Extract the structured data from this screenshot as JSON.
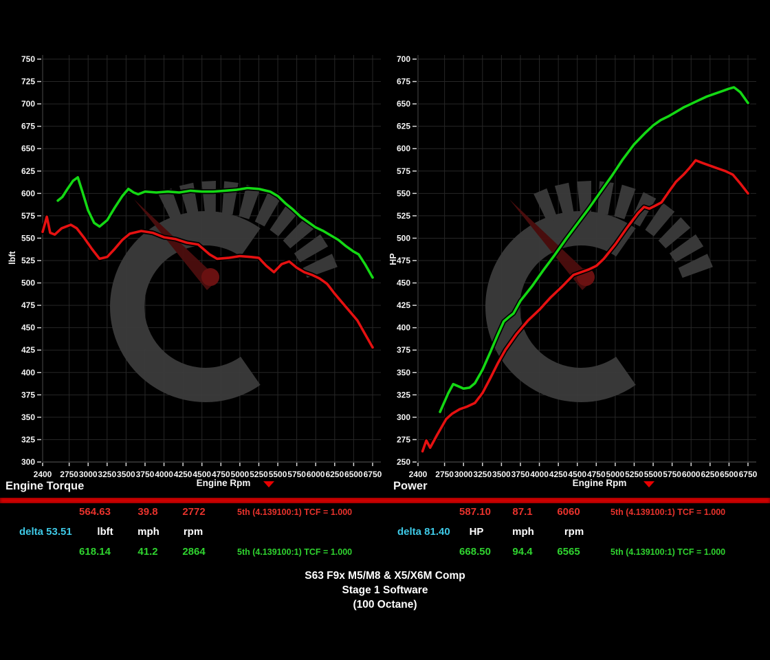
{
  "colors": {
    "background": "#000000",
    "separator": "#d40000",
    "red_text": "#e8322c",
    "green_text": "#2fd32f",
    "cyan_text": "#3ec9e6",
    "white_text": "#ffffff",
    "curve_red": "#e51111",
    "curve_green": "#14d814",
    "grid": "#272727",
    "axis": "#4a4a4a",
    "tick": "#d8d8d8",
    "watermark": "#3b3b3b",
    "needle": "#4c0e0e",
    "needle_dot": "#6f1212",
    "dropdown_red": "#e80000"
  },
  "chart_data": [
    {
      "type": "line",
      "title": "Engine Torque",
      "xlabel": "Engine Rpm",
      "ylabel": "lbft",
      "xlim": [
        2400,
        6860
      ],
      "ylim": [
        300,
        750
      ],
      "y_tick_step": 25,
      "x_ticks": [
        2400,
        2750,
        3000,
        3250,
        3500,
        3750,
        4000,
        4250,
        4500,
        4750,
        5000,
        5250,
        5500,
        5750,
        6000,
        6250,
        6500,
        6750
      ],
      "grid": true,
      "legend": "none",
      "series": [
        {
          "name": "baseline-red",
          "color": "#e51111",
          "points": [
            [
              2400,
              557
            ],
            [
              2430,
              566
            ],
            [
              2455,
              574
            ],
            [
              2500,
              556
            ],
            [
              2560,
              554
            ],
            [
              2650,
              561
            ],
            [
              2772,
              565
            ],
            [
              2850,
              561
            ],
            [
              2950,
              550
            ],
            [
              3050,
              538
            ],
            [
              3150,
              527
            ],
            [
              3250,
              529
            ],
            [
              3350,
              538
            ],
            [
              3450,
              548
            ],
            [
              3550,
              555
            ],
            [
              3700,
              558
            ],
            [
              3850,
              556
            ],
            [
              4000,
              551
            ],
            [
              4150,
              549
            ],
            [
              4300,
              545
            ],
            [
              4450,
              543
            ],
            [
              4600,
              532
            ],
            [
              4700,
              527
            ],
            [
              4850,
              528
            ],
            [
              5000,
              530
            ],
            [
              5150,
              529
            ],
            [
              5250,
              528
            ],
            [
              5350,
              519
            ],
            [
              5450,
              512
            ],
            [
              5550,
              521
            ],
            [
              5650,
              524
            ],
            [
              5750,
              517
            ],
            [
              5850,
              512
            ],
            [
              5950,
              509
            ],
            [
              6050,
              505
            ],
            [
              6150,
              499
            ],
            [
              6250,
              488
            ],
            [
              6350,
              478
            ],
            [
              6450,
              468
            ],
            [
              6550,
              458
            ],
            [
              6650,
              443
            ],
            [
              6750,
              428
            ]
          ]
        },
        {
          "name": "stage1-green",
          "color": "#14d814",
          "points": [
            [
              2600,
              592
            ],
            [
              2660,
              596
            ],
            [
              2720,
              604
            ],
            [
              2800,
              614
            ],
            [
              2864,
              618
            ],
            [
              2920,
              603
            ],
            [
              3000,
              581
            ],
            [
              3080,
              567
            ],
            [
              3150,
              563
            ],
            [
              3250,
              570
            ],
            [
              3350,
              584
            ],
            [
              3450,
              597
            ],
            [
              3530,
              605
            ],
            [
              3600,
              601
            ],
            [
              3660,
              599
            ],
            [
              3750,
              602
            ],
            [
              3900,
              601
            ],
            [
              4050,
              602
            ],
            [
              4200,
              601
            ],
            [
              4350,
              603
            ],
            [
              4500,
              602
            ],
            [
              4650,
              602
            ],
            [
              4800,
              603
            ],
            [
              4950,
              604
            ],
            [
              5100,
              606
            ],
            [
              5250,
              605
            ],
            [
              5400,
              602
            ],
            [
              5500,
              597
            ],
            [
              5600,
              589
            ],
            [
              5700,
              582
            ],
            [
              5800,
              574
            ],
            [
              5900,
              568
            ],
            [
              6000,
              562
            ],
            [
              6100,
              558
            ],
            [
              6200,
              553
            ],
            [
              6300,
              548
            ],
            [
              6400,
              541
            ],
            [
              6500,
              535
            ],
            [
              6565,
              532
            ],
            [
              6650,
              521
            ],
            [
              6750,
              506
            ]
          ]
        }
      ]
    },
    {
      "type": "line",
      "title": "Power",
      "xlabel": "Engine Rpm",
      "ylabel": "HP",
      "xlim": [
        2400,
        6860
      ],
      "ylim": [
        250,
        700
      ],
      "y_tick_step": 25,
      "x_ticks": [
        2400,
        2750,
        3000,
        3250,
        3500,
        3750,
        4000,
        4250,
        4500,
        4750,
        5000,
        5250,
        5500,
        5750,
        6000,
        6250,
        6500,
        6750
      ],
      "grid": true,
      "legend": "none",
      "series": [
        {
          "name": "baseline-red",
          "color": "#e51111",
          "points": [
            [
              2460,
              262
            ],
            [
              2510,
              274
            ],
            [
              2560,
              266
            ],
            [
              2650,
              280
            ],
            [
              2772,
              298
            ],
            [
              2850,
              304
            ],
            [
              2950,
              309
            ],
            [
              3050,
              312
            ],
            [
              3150,
              316
            ],
            [
              3250,
              327
            ],
            [
              3350,
              343
            ],
            [
              3450,
              360
            ],
            [
              3550,
              375
            ],
            [
              3700,
              393
            ],
            [
              3850,
              408
            ],
            [
              4000,
              420
            ],
            [
              4150,
              434
            ],
            [
              4300,
              446
            ],
            [
              4450,
              459
            ],
            [
              4550,
              462
            ],
            [
              4650,
              465
            ],
            [
              4750,
              469
            ],
            [
              4850,
              477
            ],
            [
              5000,
              493
            ],
            [
              5150,
              511
            ],
            [
              5300,
              528
            ],
            [
              5380,
              535
            ],
            [
              5450,
              533
            ],
            [
              5520,
              536
            ],
            [
              5610,
              540
            ],
            [
              5700,
              551
            ],
            [
              5800,
              563
            ],
            [
              5900,
              571
            ],
            [
              5975,
              578
            ],
            [
              6060,
              587
            ],
            [
              6150,
              584
            ],
            [
              6250,
              581
            ],
            [
              6350,
              578
            ],
            [
              6450,
              575
            ],
            [
              6550,
              571
            ],
            [
              6650,
              561
            ],
            [
              6750,
              550
            ]
          ]
        },
        {
          "name": "stage1-green",
          "color": "#14d814",
          "points": [
            [
              2690,
              306
            ],
            [
              2800,
              327
            ],
            [
              2864,
              337
            ],
            [
              2920,
              335
            ],
            [
              3000,
              332
            ],
            [
              3080,
              333
            ],
            [
              3150,
              338
            ],
            [
              3250,
              353
            ],
            [
              3350,
              372
            ],
            [
              3450,
              392
            ],
            [
              3530,
              407
            ],
            [
              3600,
              412
            ],
            [
              3660,
              416
            ],
            [
              3750,
              430
            ],
            [
              3900,
              446
            ],
            [
              4050,
              464
            ],
            [
              4200,
              481
            ],
            [
              4350,
              499
            ],
            [
              4500,
              516
            ],
            [
              4650,
              533
            ],
            [
              4800,
              551
            ],
            [
              4950,
              569
            ],
            [
              5100,
              588
            ],
            [
              5250,
              605
            ],
            [
              5400,
              618
            ],
            [
              5500,
              626
            ],
            [
              5600,
              632
            ],
            [
              5700,
              636
            ],
            [
              5800,
              641
            ],
            [
              5900,
              646
            ],
            [
              6000,
              650
            ],
            [
              6100,
              654
            ],
            [
              6200,
              658
            ],
            [
              6300,
              661
            ],
            [
              6400,
              664
            ],
            [
              6500,
              667
            ],
            [
              6565,
              668.5
            ],
            [
              6650,
              663
            ],
            [
              6750,
              651
            ]
          ]
        }
      ]
    }
  ],
  "readouts": [
    {
      "delta_label": "delta 53.51",
      "units": {
        "main": "lbft",
        "speed": "mph",
        "rpm": "rpm"
      },
      "red": {
        "peak": "564.63",
        "speed": "39.8",
        "rpm": "2772",
        "gear": "5th (4.139100:1) TCF = 1.000"
      },
      "green": {
        "peak": "618.14",
        "speed": "41.2",
        "rpm": "2864",
        "gear": "5th (4.139100:1) TCF = 1.000"
      }
    },
    {
      "delta_label": "delta 81.40",
      "units": {
        "main": "HP",
        "speed": "mph",
        "rpm": "rpm"
      },
      "red": {
        "peak": "587.10",
        "speed": "87.1",
        "rpm": "6060",
        "gear": "5th (4.139100:1) TCF = 1.000"
      },
      "green": {
        "peak": "668.50",
        "speed": "94.4",
        "rpm": "6565",
        "gear": "5th (4.139100:1) TCF = 1.000"
      }
    }
  ],
  "footer": {
    "title_lines": [
      "S63 F9x M5/M8 & X5/X6M Comp",
      "Stage 1 Software",
      "(100 Octane)"
    ]
  }
}
